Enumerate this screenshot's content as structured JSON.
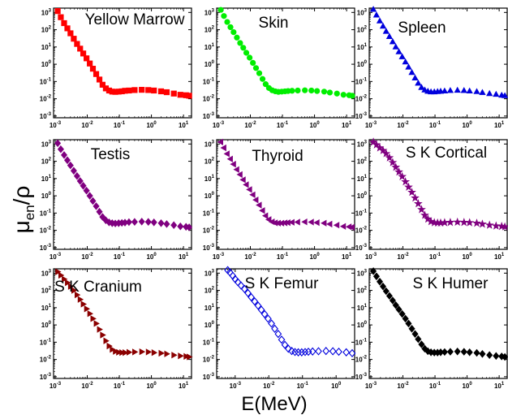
{
  "figure": {
    "xlabel": "E(MeV)",
    "ylabel_main": "μ",
    "ylabel_sub": "en",
    "ylabel_tail": "/ρ"
  },
  "chart_data": [
    {
      "type": "scatter",
      "title": "Yellow Marrow",
      "marker": "square",
      "color": "#ff0000",
      "filled": true,
      "x_scale": "log",
      "y_scale": "log",
      "x": [
        0.0012,
        0.0015,
        0.0019,
        0.0024,
        0.003,
        0.0038,
        0.0048,
        0.006,
        0.0075,
        0.0095,
        0.012,
        0.015,
        0.019,
        0.024,
        0.03,
        0.038,
        0.048,
        0.06,
        0.075,
        0.095,
        0.12,
        0.15,
        0.2,
        0.3,
        0.5,
        0.8,
        1.2,
        2,
        3,
        5,
        8,
        12,
        15
      ],
      "y": [
        1200,
        530,
        240,
        120,
        62,
        30,
        15,
        8,
        4.2,
        2.2,
        1.1,
        0.55,
        0.27,
        0.13,
        0.065,
        0.04,
        0.03,
        0.026,
        0.025,
        0.026,
        0.027,
        0.029,
        0.03,
        0.032,
        0.033,
        0.032,
        0.03,
        0.027,
        0.024,
        0.02,
        0.017,
        0.016,
        0.015
      ]
    },
    {
      "type": "scatter",
      "title": "Skin",
      "marker": "circle",
      "color": "#00ee00",
      "filled": true,
      "x_scale": "log",
      "y_scale": "log",
      "x": [
        0.0012,
        0.0015,
        0.0019,
        0.0024,
        0.003,
        0.0038,
        0.0048,
        0.006,
        0.0075,
        0.0095,
        0.012,
        0.015,
        0.019,
        0.024,
        0.03,
        0.038,
        0.048,
        0.06,
        0.075,
        0.095,
        0.12,
        0.15,
        0.2,
        0.3,
        0.5,
        0.8,
        1.2,
        2,
        3,
        5,
        8,
        12,
        15
      ],
      "y": [
        1400,
        620,
        280,
        140,
        72,
        35,
        17,
        9,
        4.6,
        2.4,
        1.2,
        0.6,
        0.3,
        0.14,
        0.07,
        0.042,
        0.031,
        0.027,
        0.025,
        0.026,
        0.027,
        0.028,
        0.029,
        0.03,
        0.031,
        0.03,
        0.028,
        0.026,
        0.023,
        0.02,
        0.017,
        0.016,
        0.015
      ]
    },
    {
      "type": "scatter",
      "title": "Spleen",
      "marker": "triangle-up",
      "color": "#0000dd",
      "filled": true,
      "x_scale": "log",
      "y_scale": "log",
      "x": [
        0.0012,
        0.0015,
        0.0019,
        0.0024,
        0.003,
        0.0038,
        0.0048,
        0.006,
        0.0075,
        0.0095,
        0.012,
        0.015,
        0.019,
        0.024,
        0.03,
        0.038,
        0.048,
        0.06,
        0.075,
        0.095,
        0.12,
        0.15,
        0.2,
        0.3,
        0.5,
        0.8,
        1.2,
        2,
        3,
        5,
        8,
        12,
        15
      ],
      "y": [
        1500,
        700,
        320,
        160,
        80,
        40,
        20,
        10,
        5.2,
        2.7,
        1.35,
        0.68,
        0.33,
        0.16,
        0.08,
        0.045,
        0.032,
        0.027,
        0.025,
        0.025,
        0.026,
        0.027,
        0.028,
        0.03,
        0.031,
        0.03,
        0.028,
        0.026,
        0.023,
        0.02,
        0.018,
        0.016,
        0.015
      ]
    },
    {
      "type": "scatter",
      "title": "Testis",
      "marker": "diamond",
      "color": "#800080",
      "filled": true,
      "x_scale": "log",
      "y_scale": "log",
      "x": [
        0.0012,
        0.0015,
        0.0019,
        0.0024,
        0.003,
        0.0038,
        0.0048,
        0.006,
        0.0075,
        0.0095,
        0.012,
        0.015,
        0.019,
        0.024,
        0.03,
        0.038,
        0.048,
        0.06,
        0.075,
        0.095,
        0.12,
        0.15,
        0.2,
        0.3,
        0.5,
        0.8,
        1.2,
        2,
        3,
        5,
        8,
        12,
        15
      ],
      "y": [
        1100,
        500,
        230,
        115,
        58,
        28,
        14,
        7.2,
        3.8,
        2,
        1,
        0.5,
        0.25,
        0.12,
        0.06,
        0.038,
        0.029,
        0.026,
        0.025,
        0.026,
        0.027,
        0.028,
        0.03,
        0.031,
        0.032,
        0.031,
        0.029,
        0.026,
        0.023,
        0.02,
        0.017,
        0.016,
        0.015
      ]
    },
    {
      "type": "scatter",
      "title": "Thyroid",
      "marker": "triangle-left",
      "color": "#800080",
      "filled": true,
      "x_scale": "log",
      "y_scale": "log",
      "x": [
        0.0012,
        0.0015,
        0.0019,
        0.0024,
        0.003,
        0.0038,
        0.0048,
        0.006,
        0.0075,
        0.0095,
        0.012,
        0.015,
        0.019,
        0.024,
        0.03,
        0.038,
        0.048,
        0.06,
        0.075,
        0.095,
        0.12,
        0.15,
        0.2,
        0.3,
        0.5,
        0.8,
        1.2,
        2,
        3,
        5,
        8,
        12,
        15
      ],
      "y": [
        1300,
        600,
        270,
        135,
        68,
        33,
        17,
        8.5,
        4.4,
        2.3,
        1.15,
        0.58,
        0.29,
        0.14,
        0.07,
        0.042,
        0.031,
        0.027,
        0.026,
        0.026,
        0.027,
        0.028,
        0.029,
        0.03,
        0.031,
        0.03,
        0.028,
        0.026,
        0.023,
        0.02,
        0.017,
        0.016,
        0.015
      ]
    },
    {
      "type": "scatter",
      "title": "S K Cortical",
      "marker": "star",
      "color": "#800080",
      "filled": true,
      "x_scale": "log",
      "y_scale": "log",
      "x": [
        0.0012,
        0.0015,
        0.0019,
        0.0024,
        0.003,
        0.0038,
        0.0048,
        0.006,
        0.0075,
        0.0095,
        0.012,
        0.015,
        0.019,
        0.024,
        0.03,
        0.038,
        0.048,
        0.06,
        0.075,
        0.095,
        0.12,
        0.15,
        0.2,
        0.3,
        0.5,
        0.8,
        1.2,
        2,
        3,
        5,
        8,
        12,
        15
      ],
      "y": [
        1300,
        900,
        600,
        420,
        280,
        160,
        85,
        45,
        24,
        13,
        6.5,
        3.2,
        1.6,
        0.75,
        0.35,
        0.16,
        0.075,
        0.045,
        0.032,
        0.028,
        0.027,
        0.027,
        0.028,
        0.029,
        0.03,
        0.029,
        0.028,
        0.026,
        0.023,
        0.02,
        0.018,
        0.017,
        0.016
      ]
    },
    {
      "type": "scatter",
      "title": "S K Cranium",
      "marker": "triangle-right",
      "color": "#8b0000",
      "filled": true,
      "x_scale": "log",
      "y_scale": "log",
      "x": [
        0.0012,
        0.0015,
        0.0019,
        0.0024,
        0.003,
        0.0038,
        0.0048,
        0.006,
        0.0075,
        0.0095,
        0.012,
        0.015,
        0.019,
        0.024,
        0.03,
        0.038,
        0.048,
        0.06,
        0.075,
        0.095,
        0.12,
        0.15,
        0.2,
        0.3,
        0.5,
        0.8,
        1.2,
        2,
        3,
        5,
        8,
        12,
        15
      ],
      "y": [
        1200,
        750,
        450,
        280,
        170,
        100,
        55,
        30,
        16,
        8.5,
        4.5,
        2.3,
        1.2,
        0.55,
        0.26,
        0.12,
        0.06,
        0.038,
        0.029,
        0.026,
        0.025,
        0.025,
        0.026,
        0.027,
        0.028,
        0.027,
        0.025,
        0.023,
        0.021,
        0.018,
        0.016,
        0.015,
        0.014
      ]
    },
    {
      "type": "scatter",
      "title": "S K Femur",
      "marker": "diamond",
      "color": "#0000dd",
      "filled": false,
      "x_scale": "log",
      "y_scale": "log",
      "x": [
        0.0006,
        0.0007,
        0.00085,
        0.001,
        0.0012,
        0.0015,
        0.0019,
        0.0024,
        0.003,
        0.0038,
        0.0048,
        0.006,
        0.0075,
        0.0095,
        0.012,
        0.015,
        0.019,
        0.024,
        0.03,
        0.038,
        0.048,
        0.06,
        0.075,
        0.095,
        0.12,
        0.15,
        0.2,
        0.3,
        0.5,
        0.8,
        1.2,
        2,
        3,
        5,
        8,
        12,
        15
      ],
      "y": [
        1500,
        1100,
        700,
        450,
        300,
        190,
        120,
        70,
        40,
        23,
        13,
        7.5,
        4.2,
        2.3,
        1.2,
        0.6,
        0.3,
        0.14,
        0.07,
        0.042,
        0.031,
        0.027,
        0.026,
        0.026,
        0.027,
        0.028,
        0.029,
        0.03,
        0.031,
        0.03,
        0.028,
        0.026,
        0.023,
        0.02,
        0.018,
        0.017,
        0.016
      ]
    },
    {
      "type": "scatter",
      "title": "S K Humer",
      "marker": "diamond",
      "color": "#000000",
      "filled": true,
      "x_scale": "log",
      "y_scale": "log",
      "x": [
        0.0012,
        0.0015,
        0.0019,
        0.0024,
        0.003,
        0.0038,
        0.0048,
        0.006,
        0.0075,
        0.0095,
        0.012,
        0.015,
        0.019,
        0.024,
        0.03,
        0.038,
        0.048,
        0.06,
        0.075,
        0.095,
        0.12,
        0.15,
        0.2,
        0.3,
        0.5,
        0.8,
        1.2,
        2,
        3,
        5,
        8,
        12,
        15
      ],
      "y": [
        1300,
        650,
        320,
        170,
        90,
        48,
        26,
        14,
        7.8,
        4.3,
        2.3,
        1.2,
        0.6,
        0.3,
        0.15,
        0.075,
        0.042,
        0.03,
        0.026,
        0.025,
        0.025,
        0.026,
        0.027,
        0.028,
        0.029,
        0.028,
        0.026,
        0.024,
        0.021,
        0.018,
        0.016,
        0.015,
        0.014
      ]
    }
  ]
}
